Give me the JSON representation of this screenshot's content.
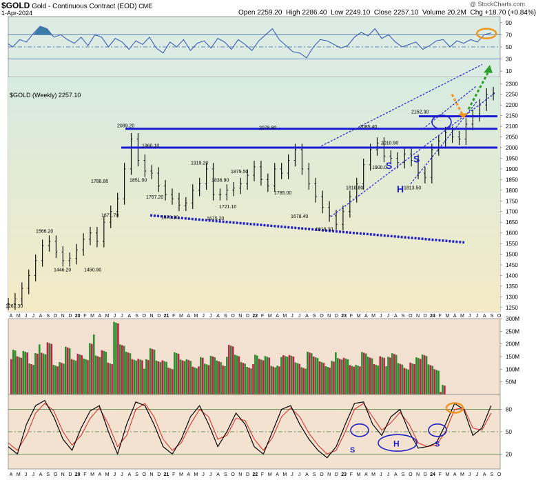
{
  "header": {
    "symbol": "$GOLD",
    "name": "Gold - Continuous Contract (EOD)",
    "exchange": "CME",
    "date": "1-Apr-2024",
    "source": "@ StockCharts.com",
    "open_label": "Open",
    "open": "2259.20",
    "high_label": "High",
    "high": "2286.40",
    "low_label": "Low",
    "low": "2249.10",
    "close_label": "Close",
    "close": "2257.10",
    "volume_label": "Volume",
    "volume": "20.2M",
    "chg_label": "Chg",
    "chg": "+18.70 (+0.84%)"
  },
  "colors": {
    "price_bg": "#f4ebc6",
    "rsi_bg": "#dcebe3",
    "vol_bg": "#f2e1d1",
    "stoch_bg": "#f3e2cf",
    "bar": "#111111",
    "hline": "#1a1ad6",
    "trend": "#2020c8",
    "up_vol": "#2e8b2e",
    "down_vol": "#c0204a",
    "orange": "#f0961e",
    "green_arrow": "#2aa02a",
    "rsi_line": "#3050b0",
    "stoch_k": "#000000",
    "stoch_d": "#e02020"
  },
  "chart_data": [
    {
      "type": "line",
      "panel": "RSI",
      "ylim": [
        0,
        100
      ],
      "y_ticks": [
        90,
        70,
        50,
        30,
        10
      ],
      "ref_lines": [
        70,
        50,
        30
      ],
      "x": [
        0,
        2,
        5,
        8,
        11,
        14,
        17,
        20,
        23,
        26,
        29,
        32,
        35,
        38,
        41,
        44,
        47,
        50,
        53,
        56,
        59,
        62,
        65,
        68,
        71,
        74,
        77,
        80,
        83,
        86,
        89,
        92,
        95,
        98,
        101,
        104,
        107,
        110,
        113,
        116,
        119,
        122,
        125,
        128,
        131,
        134,
        137,
        140,
        143,
        146,
        149,
        152,
        155,
        158,
        161,
        164,
        167,
        170,
        173,
        176,
        179,
        182,
        185,
        188,
        191,
        194,
        197,
        200,
        203,
        206,
        209,
        212
      ],
      "values": [
        55,
        50,
        62,
        58,
        72,
        84,
        80,
        66,
        70,
        62,
        56,
        66,
        52,
        70,
        66,
        50,
        64,
        58,
        46,
        60,
        54,
        66,
        48,
        40,
        58,
        50,
        62,
        44,
        56,
        60,
        48,
        64,
        58,
        46,
        62,
        54,
        44,
        60,
        70,
        80,
        62,
        52,
        42,
        40,
        32,
        50,
        62,
        60,
        54,
        48,
        52,
        66,
        74,
        68,
        80,
        64,
        70,
        58,
        50,
        54,
        58,
        46,
        52,
        60,
        62,
        50,
        60,
        56,
        62,
        58,
        70,
        73
      ]
    },
    {
      "type": "bar",
      "panel": "price",
      "title": "$GOLD (Weekly) 2257.10",
      "ylim": [
        1230,
        2330
      ],
      "y_ticks": [
        2300,
        2250,
        2200,
        2150,
        2100,
        2050,
        2000,
        1950,
        1900,
        1850,
        1800,
        1750,
        1700,
        1650,
        1600,
        1550,
        1500,
        1450,
        1400,
        1350,
        1300,
        1250
      ],
      "x_labels": [
        "A",
        "M",
        "J",
        "J",
        "A",
        "S",
        "O",
        "N",
        "D",
        "20",
        "F",
        "M",
        "A",
        "M",
        "J",
        "J",
        "A",
        "S",
        "O",
        "N",
        "D",
        "21",
        "F",
        "M",
        "A",
        "M",
        "J",
        "J",
        "A",
        "S",
        "O",
        "N",
        "D",
        "22",
        "F",
        "M",
        "A",
        "M",
        "J",
        "J",
        "A",
        "S",
        "O",
        "N",
        "D",
        "23",
        "F",
        "M",
        "A",
        "M",
        "J",
        "J",
        "A",
        "S",
        "O",
        "N",
        "D",
        "24",
        "F",
        "M",
        "A",
        "M",
        "J",
        "J",
        "A",
        "S",
        "O"
      ],
      "x": [
        0,
        3,
        6,
        9,
        12,
        15,
        18,
        21,
        24,
        27,
        30,
        33,
        36,
        39,
        42,
        45,
        48,
        51,
        54,
        57,
        60,
        63,
        66,
        69,
        72,
        75,
        78,
        81,
        84,
        87,
        90,
        93,
        96,
        99,
        102,
        105,
        108,
        111,
        114,
        117,
        120,
        123,
        126,
        129,
        132,
        135,
        138,
        141,
        144,
        147,
        150,
        153,
        156,
        159,
        162,
        165,
        168,
        171,
        174,
        177,
        180,
        183,
        186,
        189,
        192,
        195,
        198,
        201,
        204,
        207,
        210,
        213
      ],
      "close": [
        1267,
        1290,
        1340,
        1400,
        1470,
        1540,
        1560,
        1510,
        1470,
        1480,
        1520,
        1570,
        1600,
        1560,
        1650,
        1700,
        1760,
        1900,
        2040,
        1940,
        1890,
        1880,
        1820,
        1780,
        1760,
        1730,
        1740,
        1800,
        1830,
        1900,
        1780,
        1780,
        1800,
        1810,
        1830,
        1870,
        1910,
        1850,
        1820,
        1900,
        1880,
        1940,
        1990,
        1900,
        1830,
        1770,
        1720,
        1680,
        1640,
        1700,
        1770,
        1830,
        1920,
        1990,
        2020,
        1960,
        1950,
        1930,
        1970,
        1940,
        1880,
        1860,
        1990,
        2030,
        2070,
        2050,
        2040,
        2110,
        2150,
        2200,
        2250,
        2257
      ]
    },
    {
      "type": "bar",
      "panel": "volume",
      "ylim": [
        0,
        300
      ],
      "y_ticks_labels": [
        "300M",
        "250M",
        "200M",
        "150M",
        "100M",
        "50M"
      ],
      "y_ticks": [
        300,
        250,
        200,
        150,
        100,
        50
      ],
      "values": [
        160,
        140,
        170,
        130,
        180,
        150,
        200,
        120,
        140,
        170,
        130,
        160,
        150,
        220,
        140,
        170,
        130,
        300,
        180,
        160,
        140,
        150,
        120,
        170,
        130,
        140,
        120,
        150,
        130,
        140,
        120,
        130,
        110,
        150,
        140,
        130,
        180,
        150,
        130,
        120,
        140,
        130,
        150,
        120,
        130,
        140,
        150,
        130,
        120,
        150,
        140,
        130,
        120,
        150,
        130,
        140,
        120,
        130,
        150,
        140,
        120,
        160,
        130,
        150,
        120,
        110,
        140,
        130,
        150,
        120,
        110,
        20
      ]
    },
    {
      "type": "line",
      "panel": "stochastic",
      "ylim": [
        0,
        100
      ],
      "y_ticks": [
        80,
        50,
        20
      ],
      "ref_lines": [
        80,
        50,
        20
      ],
      "x": [
        0,
        4,
        8,
        12,
        16,
        20,
        24,
        28,
        32,
        36,
        40,
        44,
        48,
        52,
        56,
        60,
        64,
        68,
        72,
        76,
        80,
        84,
        88,
        92,
        96,
        100,
        104,
        108,
        112,
        116,
        120,
        124,
        128,
        132,
        136,
        140,
        144,
        148,
        152,
        156,
        160,
        164,
        168,
        172,
        176,
        180,
        184,
        188,
        192,
        196,
        200,
        204,
        208,
        212
      ],
      "k": [
        30,
        20,
        60,
        85,
        92,
        70,
        40,
        25,
        55,
        78,
        85,
        50,
        20,
        60,
        90,
        85,
        60,
        30,
        20,
        40,
        70,
        85,
        60,
        30,
        50,
        75,
        60,
        30,
        20,
        50,
        80,
        85,
        60,
        40,
        25,
        15,
        30,
        60,
        88,
        90,
        60,
        45,
        70,
        80,
        50,
        28,
        30,
        35,
        60,
        88,
        80,
        45,
        55,
        85
      ],
      "d": [
        35,
        25,
        45,
        75,
        88,
        78,
        50,
        32,
        45,
        68,
        82,
        60,
        30,
        45,
        80,
        88,
        70,
        40,
        25,
        35,
        60,
        80,
        70,
        40,
        45,
        68,
        65,
        40,
        25,
        42,
        70,
        82,
        70,
        48,
        32,
        20,
        25,
        50,
        80,
        88,
        70,
        52,
        62,
        76,
        60,
        35,
        30,
        32,
        50,
        80,
        82,
        55,
        52,
        75
      ]
    }
  ],
  "annotations": {
    "price_labels": [
      "1267.30",
      "1566.20",
      "1446.20",
      "1450.90",
      "1788.80",
      "1671.70",
      "2089.20",
      "1960.10",
      "1851.00",
      "1767.20",
      "1673.30",
      "1919.20",
      "1836.90",
      "1721.10",
      "1675.20",
      "1879.50",
      "2078.80",
      "1785.00",
      "1678.40",
      "1618.30",
      "1810.80",
      "2085.40",
      "2010.90",
      "1900.0",
      "2152.30",
      "1813.50"
    ],
    "pattern_s1": "S",
    "pattern_h": "H",
    "pattern_s2": "S",
    "stoch_s1": "S",
    "stoch_h": "H",
    "stoch_s2": "S"
  }
}
